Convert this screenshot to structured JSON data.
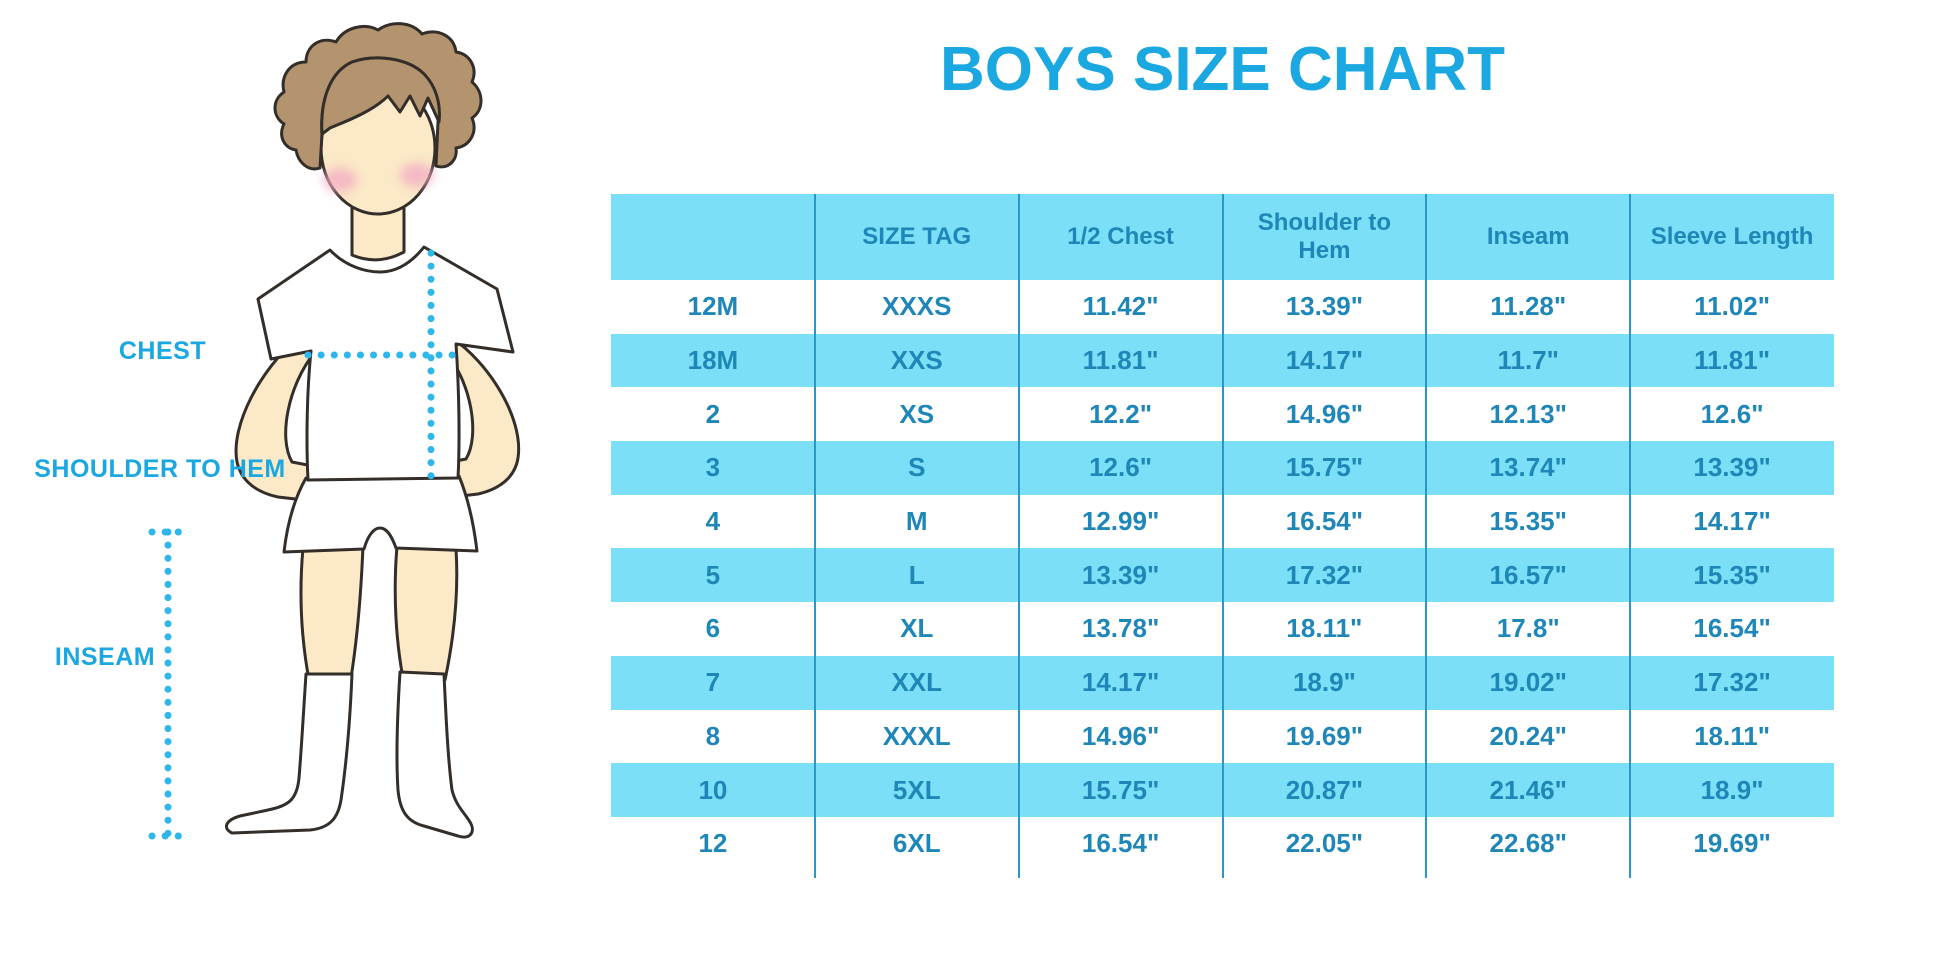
{
  "title": "BOYS SIZE CHART",
  "diagram": {
    "chest_label": "CHEST",
    "shoulder_to_hem_label": "SHOULDER TO HEM",
    "inseam_label": "INSEAM"
  },
  "chart_data": {
    "type": "table",
    "title": "BOYS SIZE CHART",
    "columns": [
      "",
      "SIZE TAG",
      "1/2 Chest",
      "Shoulder to\nHem",
      "Inseam",
      "Sleeve Length"
    ],
    "rows": [
      [
        "12M",
        "XXXS",
        "11.42\"",
        "13.39\"",
        "11.28\"",
        "11.02\""
      ],
      [
        "18M",
        "XXS",
        "11.81\"",
        "14.17\"",
        "11.7\"",
        "11.81\""
      ],
      [
        "2",
        "XS",
        "12.2\"",
        "14.96\"",
        "12.13\"",
        "12.6\""
      ],
      [
        "3",
        "S",
        "12.6\"",
        "15.75\"",
        "13.74\"",
        "13.39\""
      ],
      [
        "4",
        "M",
        "12.99\"",
        "16.54\"",
        "15.35\"",
        "14.17\""
      ],
      [
        "5",
        "L",
        "13.39\"",
        "17.32\"",
        "16.57\"",
        "15.35\""
      ],
      [
        "6",
        "XL",
        "13.78\"",
        "18.11\"",
        "17.8\"",
        "16.54\""
      ],
      [
        "7",
        "XXL",
        "14.17\"",
        "18.9\"",
        "19.02\"",
        "17.32\""
      ],
      [
        "8",
        "XXXL",
        "14.96\"",
        "19.69\"",
        "20.24\"",
        "18.11\""
      ],
      [
        "10",
        "5XL",
        "15.75\"",
        "20.87\"",
        "21.46\"",
        "18.9\""
      ],
      [
        "12",
        "6XL",
        "16.54\"",
        "22.05\"",
        "22.68\"",
        "19.69\""
      ]
    ]
  },
  "colors": {
    "accent": "#1BA7E0",
    "stripe": "#7ADFF7",
    "table-text": "#1F86B8",
    "separator": "#2A97CB",
    "dotted-line": "#2FB7EC",
    "skin": "#FBE9C7",
    "hair": "#B3946E",
    "outline": "#332E29",
    "cheek": "#F3AEC3"
  }
}
